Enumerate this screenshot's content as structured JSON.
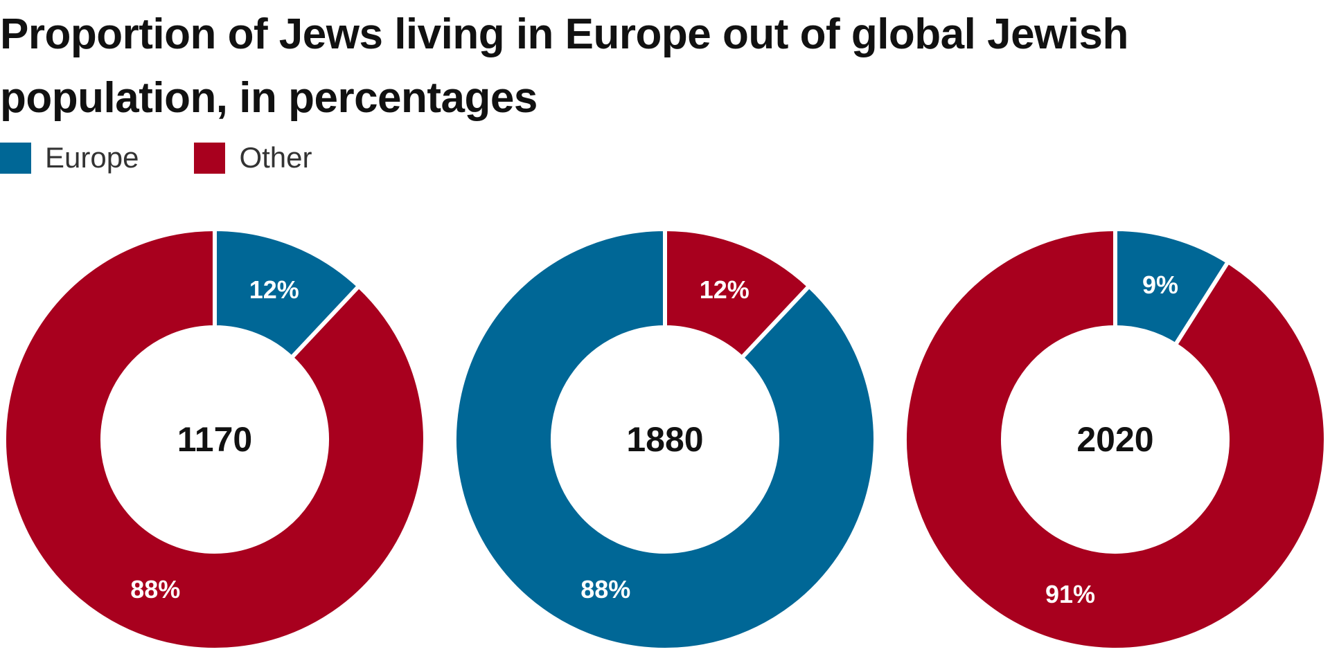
{
  "title": "Proportion of Jews living in Europe out of global Jewish population, in percentages",
  "legend": {
    "items": [
      {
        "label": "Europe",
        "color": "#006796"
      },
      {
        "label": "Other",
        "color": "#a8001e"
      }
    ]
  },
  "chart_data": {
    "type": "pie",
    "variant": "donut",
    "unit": "%",
    "categories": [
      "Europe",
      "Other"
    ],
    "colors": {
      "Europe": "#006796",
      "Other": "#a8001e"
    },
    "charts": [
      {
        "center_label": "1170",
        "slices": [
          {
            "category": "Europe",
            "value": 12,
            "label": "12%"
          },
          {
            "category": "Other",
            "value": 88,
            "label": "88%"
          }
        ]
      },
      {
        "center_label": "1880",
        "slices": [
          {
            "category": "Other",
            "value": 12,
            "label": "12%"
          },
          {
            "category": "Europe",
            "value": 88,
            "label": "88%"
          }
        ]
      },
      {
        "center_label": "2020",
        "slices": [
          {
            "category": "Europe",
            "value": 9,
            "label": "9%"
          },
          {
            "category": "Other",
            "value": 91,
            "label": "91%"
          }
        ]
      }
    ]
  }
}
